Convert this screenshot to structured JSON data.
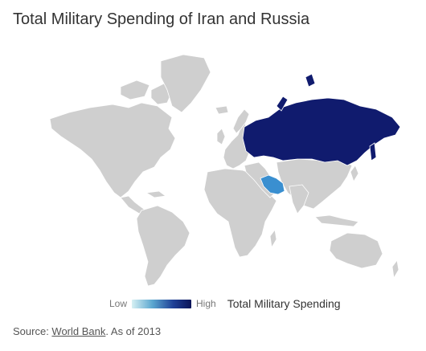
{
  "title": "Total Military Spending of Iran and Russia",
  "legend": {
    "low_label": "Low",
    "high_label": "High",
    "title": "Total Military Spending",
    "color_low": "#d6f0f3",
    "color_high": "#0b1458"
  },
  "regions": [
    {
      "name": "Russia",
      "level": "high",
      "color": "#101b6e"
    },
    {
      "name": "Iran",
      "level": "low",
      "color": "#3a8fd0"
    }
  ],
  "colors": {
    "no_data": "#cfcfcf"
  },
  "source": {
    "prefix": "Source: ",
    "link_text": "World Bank",
    "suffix": ". As of 2013"
  }
}
